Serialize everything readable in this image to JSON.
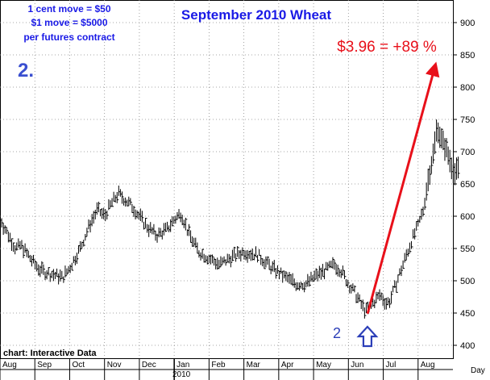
{
  "chart_data": {
    "type": "bar",
    "subtype": "ohlc-price-bars",
    "title": "September 2010 Wheat",
    "info_lines": [
      "1 cent move = $50",
      "$1 move = $5000",
      "per futures contract"
    ],
    "panel_label": "2.",
    "source": "chart: Interactive Data",
    "y_axis_title": "Day",
    "ylim": [
      380,
      935
    ],
    "y_ticks": [
      400,
      450,
      500,
      550,
      600,
      650,
      700,
      750,
      800,
      850,
      900
    ],
    "x_month_labels": [
      "Aug",
      "Sep",
      "Oct",
      "Nov",
      "Dec",
      "Jan",
      "Feb",
      "Mar",
      "Apr",
      "May",
      "Jun",
      "Jul",
      "Aug"
    ],
    "x_year_label": "2010",
    "month_index_range": [
      0,
      13
    ],
    "grid": true,
    "series": [
      {
        "values": [
          [
            0.0,
            600
          ],
          [
            0.1,
            585
          ],
          [
            0.25,
            570
          ],
          [
            0.45,
            550
          ],
          [
            0.6,
            555
          ],
          [
            0.8,
            540
          ],
          [
            1.0,
            525
          ],
          [
            1.2,
            515
          ],
          [
            1.5,
            510
          ],
          [
            1.8,
            505
          ],
          [
            2.0,
            520
          ],
          [
            2.3,
            550
          ],
          [
            2.6,
            590
          ],
          [
            2.8,
            610
          ],
          [
            3.0,
            600
          ],
          [
            3.2,
            620
          ],
          [
            3.4,
            635
          ],
          [
            3.6,
            625
          ],
          [
            3.8,
            615
          ],
          [
            4.0,
            600
          ],
          [
            4.2,
            585
          ],
          [
            4.5,
            570
          ],
          [
            4.8,
            580
          ],
          [
            5.0,
            595
          ],
          [
            5.2,
            605
          ],
          [
            5.4,
            575
          ],
          [
            5.7,
            545
          ],
          [
            6.0,
            535
          ],
          [
            6.3,
            525
          ],
          [
            6.6,
            535
          ],
          [
            7.0,
            545
          ],
          [
            7.4,
            540
          ],
          [
            7.8,
            520
          ],
          [
            8.2,
            505
          ],
          [
            8.5,
            495
          ],
          [
            8.8,
            495
          ],
          [
            9.0,
            505
          ],
          [
            9.3,
            515
          ],
          [
            9.6,
            525
          ],
          [
            9.8,
            515
          ],
          [
            10.0,
            495
          ],
          [
            10.2,
            480
          ],
          [
            10.4,
            460
          ],
          [
            10.5,
            452
          ],
          [
            10.7,
            465
          ],
          [
            10.9,
            478
          ],
          [
            11.1,
            465
          ],
          [
            11.2,
            470
          ],
          [
            11.4,
            500
          ],
          [
            11.6,
            530
          ],
          [
            11.8,
            560
          ],
          [
            12.0,
            585
          ],
          [
            12.15,
            610
          ],
          [
            12.3,
            660
          ],
          [
            12.45,
            700
          ],
          [
            12.55,
            740
          ],
          [
            12.65,
            720
          ],
          [
            12.8,
            705
          ],
          [
            12.95,
            680
          ],
          [
            13.05,
            665
          ],
          [
            13.2,
            675
          ]
        ]
      }
    ],
    "annotations": [
      {
        "text": "$3.96 = +89 %",
        "color": "#e8101a",
        "arrow_from": [
          10.55,
          449
        ],
        "arrow_to": [
          12.5,
          835
        ]
      },
      {
        "text": "2",
        "color": "#2c3fb8",
        "marker": "up-arrow",
        "at": [
          10.5,
          410
        ]
      }
    ]
  },
  "colors": {
    "title": "#1a1ae6",
    "info": "#1a1ae6",
    "panel_label": "#3a4fd0",
    "annotation": "#e8101a",
    "marker": "#2c3fb8",
    "price": "#000000",
    "grid": "#8a8a8a"
  }
}
